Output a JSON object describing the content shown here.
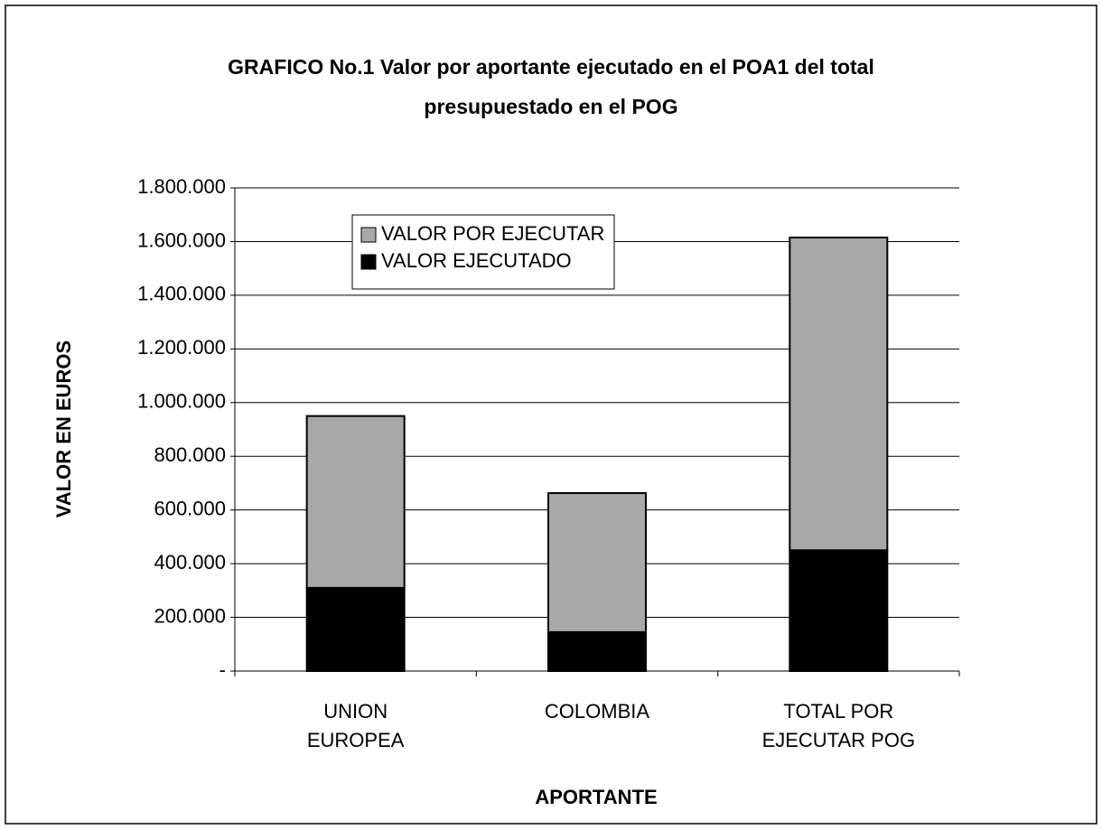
{
  "chart_data": {
    "type": "stacked_bar",
    "title": "GRAFICO No.1 Valor por aportante ejecutado en el POA1 del total presupuestado en el POG",
    "x_label": "APORTANTE",
    "y_label": "VALOR EN EUROS",
    "categories": [
      "UNION EUROPEA",
      "COLOMBIA",
      "TOTAL POR EJECUTAR POG"
    ],
    "series": [
      {
        "name": "VALOR EJECUTADO",
        "color": "#000000",
        "values": [
          310000,
          145000,
          450000
        ]
      },
      {
        "name": "VALOR POR EJECUTAR",
        "color": "#a8a8a8",
        "values": [
          640000,
          518000,
          1165000
        ]
      }
    ],
    "ylim": [
      0,
      1800000
    ],
    "yticks": [
      {
        "value": 0,
        "label": "-"
      },
      {
        "value": 200000,
        "label": "200.000"
      },
      {
        "value": 400000,
        "label": "400.000"
      },
      {
        "value": 600000,
        "label": "600.000"
      },
      {
        "value": 800000,
        "label": "800.000"
      },
      {
        "value": 1000000,
        "label": "1.000.000"
      },
      {
        "value": 1200000,
        "label": "1.200.000"
      },
      {
        "value": 1400000,
        "label": "1.400.000"
      },
      {
        "value": 1600000,
        "label": "1.600.000"
      },
      {
        "value": 1800000,
        "label": "1.800.000"
      }
    ],
    "grid": true
  }
}
